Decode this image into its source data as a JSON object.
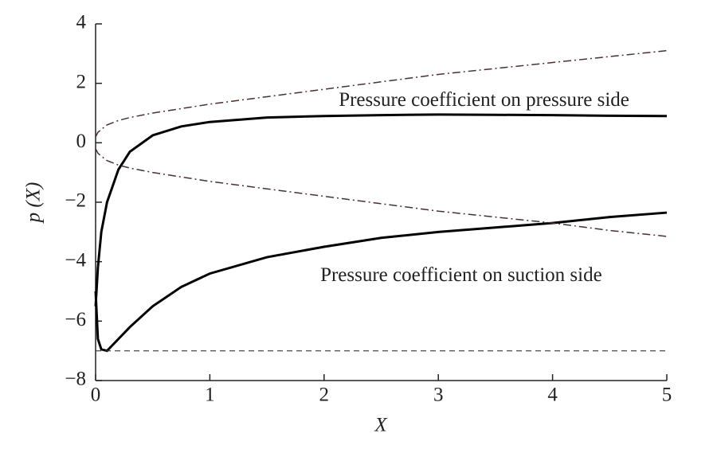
{
  "chart_data": {
    "type": "line",
    "xlabel": "X",
    "ylabel": "p (X)",
    "x": [
      0,
      0.02,
      0.05,
      0.1,
      0.2,
      0.3,
      0.5,
      0.75,
      1,
      1.5,
      2,
      2.5,
      3,
      3.5,
      4,
      4.5,
      5
    ],
    "series": [
      {
        "color": "#000000",
        "style": "solid",
        "width": 3,
        "values": [
          -5.5,
          -4.2,
          -3.0,
          -2.0,
          -0.9,
          -0.3,
          0.25,
          0.55,
          0.7,
          0.85,
          0.9,
          0.93,
          0.95,
          0.94,
          0.93,
          0.91,
          0.9
        ]
      },
      {
        "color": "#000000",
        "style": "solid",
        "width": 3,
        "values": [
          -5,
          -6.6,
          -6.95,
          -7,
          -6.6,
          -6.2,
          -5.5,
          -4.85,
          -4.4,
          -3.85,
          -3.5,
          -3.2,
          -3.0,
          -2.85,
          -2.7,
          -2.5,
          -2.35
        ]
      },
      {
        "color": "#4a3030",
        "style": "dashdot",
        "width": 1.5,
        "values": [
          0.2,
          0.35,
          0.45,
          0.6,
          0.75,
          0.85,
          1.0,
          1.15,
          1.3,
          1.55,
          1.8,
          2.05,
          2.3,
          2.5,
          2.7,
          2.9,
          3.1
        ]
      },
      {
        "color": "#4a3030",
        "style": "dashdot",
        "width": 1.5,
        "values": [
          -0.2,
          -0.35,
          -0.45,
          -0.6,
          -0.75,
          -0.85,
          -1.0,
          -1.15,
          -1.3,
          -1.55,
          -1.8,
          -2.05,
          -2.3,
          -2.5,
          -2.7,
          -2.95,
          -3.15
        ]
      },
      {
        "color": "#4a3030",
        "style": "dashed",
        "width": 1.2,
        "values": [
          -7,
          -7,
          -7,
          -7,
          -7,
          -7,
          -7,
          -7,
          -7,
          -7,
          -7,
          -7,
          -7,
          -7,
          -7,
          -7,
          -7
        ]
      }
    ],
    "annotations": [
      {
        "text": "Pressure coefficient on pressure side",
        "x": 3.4,
        "y": 1.4
      },
      {
        "text": "Pressure coefficient on suction side",
        "x": 3.2,
        "y": -4.5
      }
    ],
    "xlim": [
      0,
      5
    ],
    "xticks": [
      0,
      1,
      2,
      3,
      4,
      5
    ],
    "ylim": [
      -8,
      4
    ],
    "yticks": [
      {
        "value": -8,
        "label": "−8"
      },
      {
        "value": -6,
        "label": "−6"
      },
      {
        "value": -4,
        "label": "−4"
      },
      {
        "value": -2,
        "label": "−2"
      },
      0,
      2,
      4
    ],
    "grid": false
  }
}
